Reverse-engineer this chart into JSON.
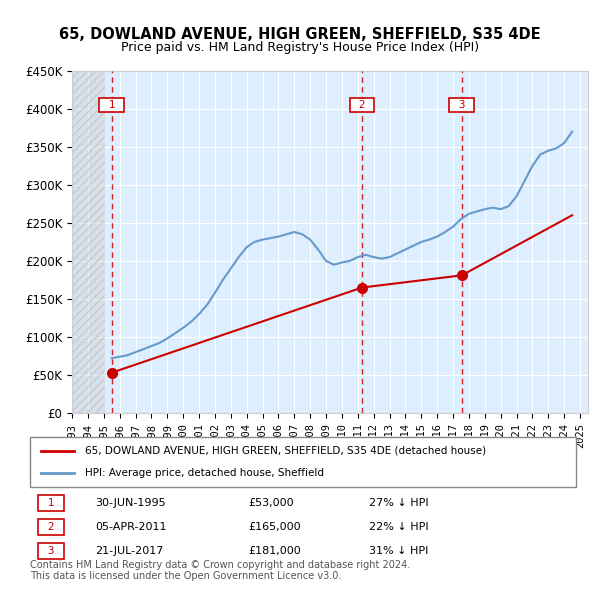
{
  "title": "65, DOWLAND AVENUE, HIGH GREEN, SHEFFIELD, S35 4DE",
  "subtitle": "Price paid vs. HM Land Registry's House Price Index (HPI)",
  "ylabel": "",
  "xlabel": "",
  "ylim": [
    0,
    450000
  ],
  "yticks": [
    0,
    50000,
    100000,
    150000,
    200000,
    250000,
    300000,
    350000,
    400000,
    450000
  ],
  "ytick_labels": [
    "£0",
    "£50K",
    "£100K",
    "£150K",
    "£200K",
    "£250K",
    "£300K",
    "£350K",
    "£400K",
    "£450K"
  ],
  "xlim_start": 1993.0,
  "xlim_end": 2025.5,
  "hpi_color": "#6699cc",
  "price_color": "#cc0000",
  "hatch_color": "#cccccc",
  "background_color": "#ddeeff",
  "sales": [
    {
      "num": 1,
      "date": "30-JUN-1995",
      "x": 1995.5,
      "price": 53000,
      "label": "£53,000",
      "pct": "27% ↓ HPI"
    },
    {
      "num": 2,
      "date": "05-APR-2011",
      "x": 2011.27,
      "price": 165000,
      "label": "£165,000",
      "pct": "22% ↓ HPI"
    },
    {
      "num": 3,
      "date": "21-JUL-2017",
      "x": 2017.55,
      "price": 181000,
      "label": "£181,000",
      "pct": "31% ↓ HPI"
    }
  ],
  "legend_label_red": "65, DOWLAND AVENUE, HIGH GREEN, SHEFFIELD, S35 4DE (detached house)",
  "legend_label_blue": "HPI: Average price, detached house, Sheffield",
  "footer1": "Contains HM Land Registry data © Crown copyright and database right 2024.",
  "footer2": "This data is licensed under the Open Government Licence v3.0.",
  "hpi_data": {
    "x": [
      1995.5,
      1996.0,
      1996.5,
      1997.0,
      1997.5,
      1998.0,
      1998.5,
      1999.0,
      1999.5,
      2000.0,
      2000.5,
      2001.0,
      2001.5,
      2002.0,
      2002.5,
      2003.0,
      2003.5,
      2004.0,
      2004.5,
      2005.0,
      2005.5,
      2006.0,
      2006.5,
      2007.0,
      2007.5,
      2008.0,
      2008.5,
      2009.0,
      2009.5,
      2010.0,
      2010.5,
      2011.0,
      2011.5,
      2012.0,
      2012.5,
      2013.0,
      2013.5,
      2014.0,
      2014.5,
      2015.0,
      2015.5,
      2016.0,
      2016.5,
      2017.0,
      2017.5,
      2018.0,
      2018.5,
      2019.0,
      2019.5,
      2020.0,
      2020.5,
      2021.0,
      2021.5,
      2022.0,
      2022.5,
      2023.0,
      2023.5,
      2024.0,
      2024.5
    ],
    "y": [
      72000,
      74000,
      76000,
      80000,
      84000,
      88000,
      92000,
      98000,
      105000,
      112000,
      120000,
      130000,
      142000,
      158000,
      175000,
      190000,
      205000,
      218000,
      225000,
      228000,
      230000,
      232000,
      235000,
      238000,
      235000,
      228000,
      215000,
      200000,
      195000,
      198000,
      200000,
      205000,
      208000,
      205000,
      203000,
      205000,
      210000,
      215000,
      220000,
      225000,
      228000,
      232000,
      238000,
      245000,
      255000,
      262000,
      265000,
      268000,
      270000,
      268000,
      272000,
      285000,
      305000,
      325000,
      340000,
      345000,
      348000,
      355000,
      370000
    ]
  },
  "price_data": {
    "x": [
      1995.5,
      2011.27,
      2017.55,
      2024.5
    ],
    "y": [
      53000,
      165000,
      181000,
      260000
    ]
  }
}
